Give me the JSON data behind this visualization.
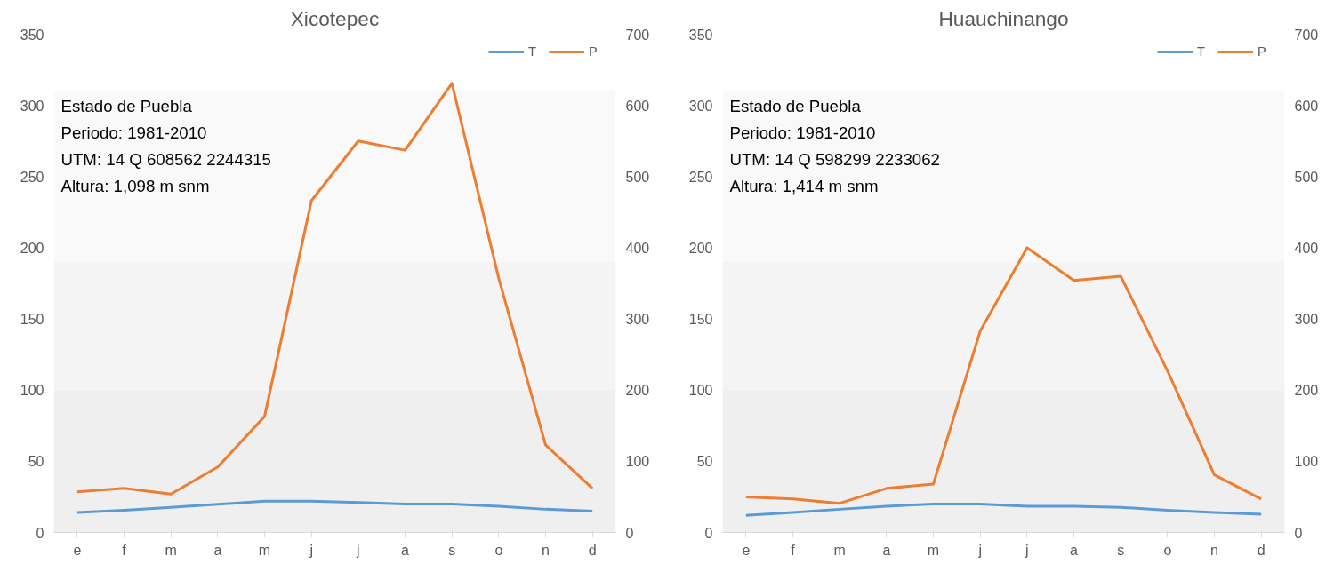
{
  "chart_data": [
    {
      "type": "line",
      "title": "Xicotepec",
      "categories": [
        "e",
        "f",
        "m",
        "a",
        "m",
        "j",
        "j",
        "a",
        "s",
        "o",
        "n",
        "d"
      ],
      "series": [
        {
          "name": "T",
          "color": "#5b9bd5",
          "values": [
            14,
            15.6,
            17.7,
            19.8,
            22,
            22,
            21,
            20,
            20,
            18.4,
            16.3,
            15
          ]
        },
        {
          "name": "P",
          "color": "#ed7d31",
          "axis": "y2",
          "values": [
            57,
            62,
            54,
            92,
            163,
            466,
            550,
            537,
            631,
            357,
            123,
            62
          ]
        }
      ],
      "ylim": [
        0,
        350
      ],
      "yticks": [
        0,
        50,
        100,
        150,
        200,
        250,
        300,
        350
      ],
      "y2lim": [
        0,
        700
      ],
      "y2ticks": [
        0,
        100,
        200,
        300,
        400,
        500,
        600,
        700
      ],
      "bands": [
        {
          "axis": "y",
          "from": 0,
          "to": 100,
          "color": "#efefef"
        },
        {
          "axis": "y",
          "from": 100,
          "to": 190,
          "color": "#f4f4f4"
        },
        {
          "axis": "y",
          "from": 190,
          "to": 310,
          "color": "#f9f9f9"
        }
      ],
      "annotations": [
        "Estado de Puebla",
        "Periodo: 1981-2010",
        "UTM: 14 Q 608562 2244315",
        "Altura: 1,098 m snm"
      ],
      "legend": "top right",
      "grid": false,
      "marker": "none",
      "line_style": "solid"
    },
    {
      "type": "line",
      "title": "Huauchinango",
      "categories": [
        "e",
        "f",
        "m",
        "a",
        "m",
        "j",
        "j",
        "a",
        "s",
        "o",
        "n",
        "d"
      ],
      "series": [
        {
          "name": "T",
          "color": "#5b9bd5",
          "values": [
            12,
            14,
            16.3,
            18.4,
            20,
            20,
            18.4,
            18.4,
            17.7,
            15.6,
            14,
            12.8
          ]
        },
        {
          "name": "P",
          "color": "#ed7d31",
          "axis": "y2",
          "values": [
            50,
            47,
            41,
            62,
            68,
            283,
            400,
            354,
            360,
            227,
            81,
            47
          ]
        }
      ],
      "ylim": [
        0,
        350
      ],
      "yticks": [
        0,
        50,
        100,
        150,
        200,
        250,
        300,
        350
      ],
      "y2lim": [
        0,
        700
      ],
      "y2ticks": [
        0,
        100,
        200,
        300,
        400,
        500,
        600,
        700
      ],
      "bands": [
        {
          "axis": "y",
          "from": 0,
          "to": 100,
          "color": "#efefef"
        },
        {
          "axis": "y",
          "from": 100,
          "to": 190,
          "color": "#f4f4f4"
        },
        {
          "axis": "y",
          "from": 190,
          "to": 310,
          "color": "#f9f9f9"
        }
      ],
      "annotations": [
        "Estado de Puebla",
        "Periodo: 1981-2010",
        "UTM: 14 Q 598299 2233062",
        "Altura: 1,414 m snm"
      ],
      "legend": "top right",
      "grid": false,
      "marker": "none",
      "line_style": "solid"
    }
  ]
}
